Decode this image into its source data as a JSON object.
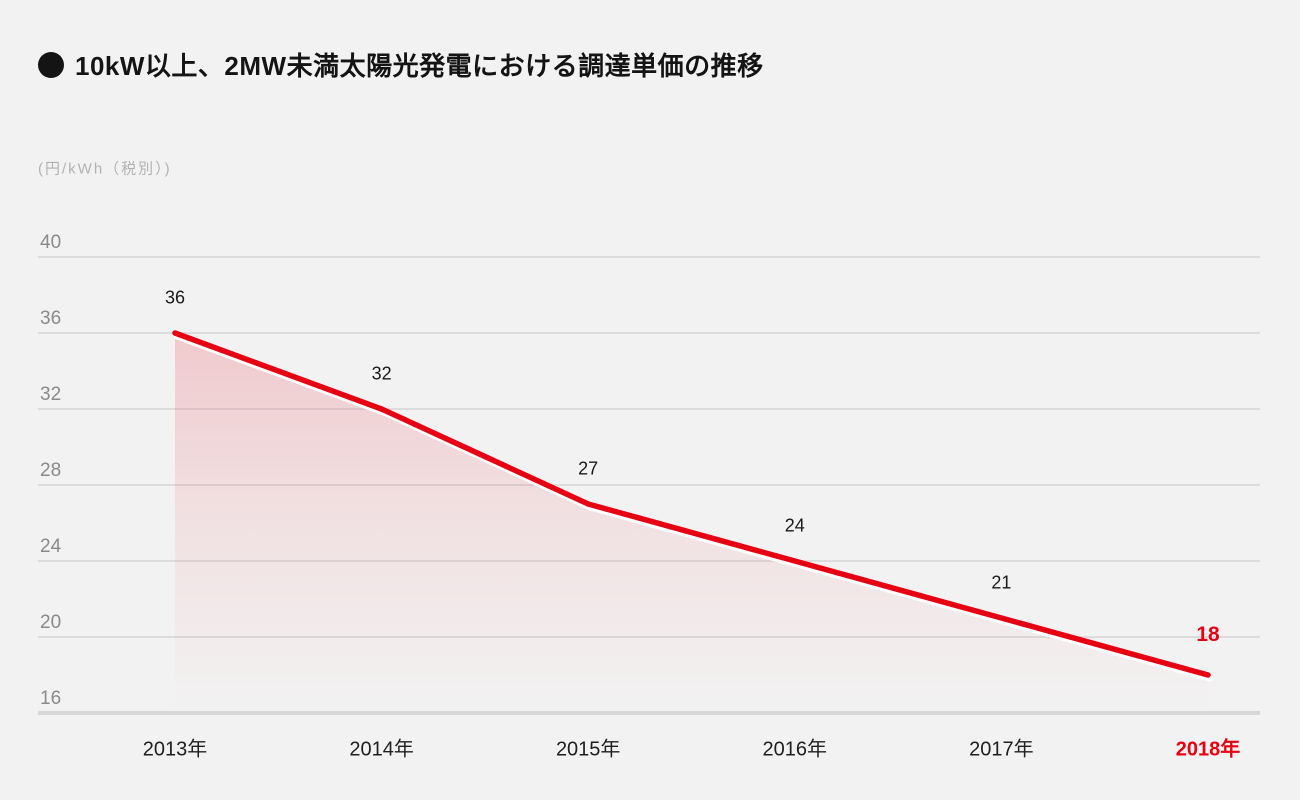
{
  "page": {
    "background": "#f2f2f2"
  },
  "header": {
    "bullet": "●",
    "title": "10kW以上、2MW未満太陽光発電における調達単価の推移"
  },
  "chart_data": {
    "type": "area",
    "title": "10kW以上、2MW未満太陽光発電における調達単価の推移",
    "unit_label": "(円/kWh（税別）)",
    "categories": [
      "2013年",
      "2014年",
      "2015年",
      "2016年",
      "2017年",
      "2018年"
    ],
    "values": [
      36,
      32,
      27,
      24,
      21,
      18
    ],
    "y_ticks": [
      40,
      36,
      32,
      28,
      24,
      20,
      16
    ],
    "ylim": [
      16,
      40
    ],
    "grid": true,
    "legend": "none",
    "highlight_last": true,
    "colors": {
      "line": "#e60012",
      "line_outline": "#ffffff",
      "area_top": "rgba(230,0,18,0.17)",
      "area_mid": "rgba(230,0,18,0.08)",
      "area_bottom": "rgba(230,0,18,0)",
      "grid": "#dcdcdc",
      "axis_base": "#d7d7d7",
      "tick_text": "#8a8a8a",
      "unit_text": "#b3b1b1",
      "label_text": "#1a1a1a",
      "year_text": "#1f1f1f",
      "title_text": "#141414",
      "highlight": "#e60012"
    }
  }
}
